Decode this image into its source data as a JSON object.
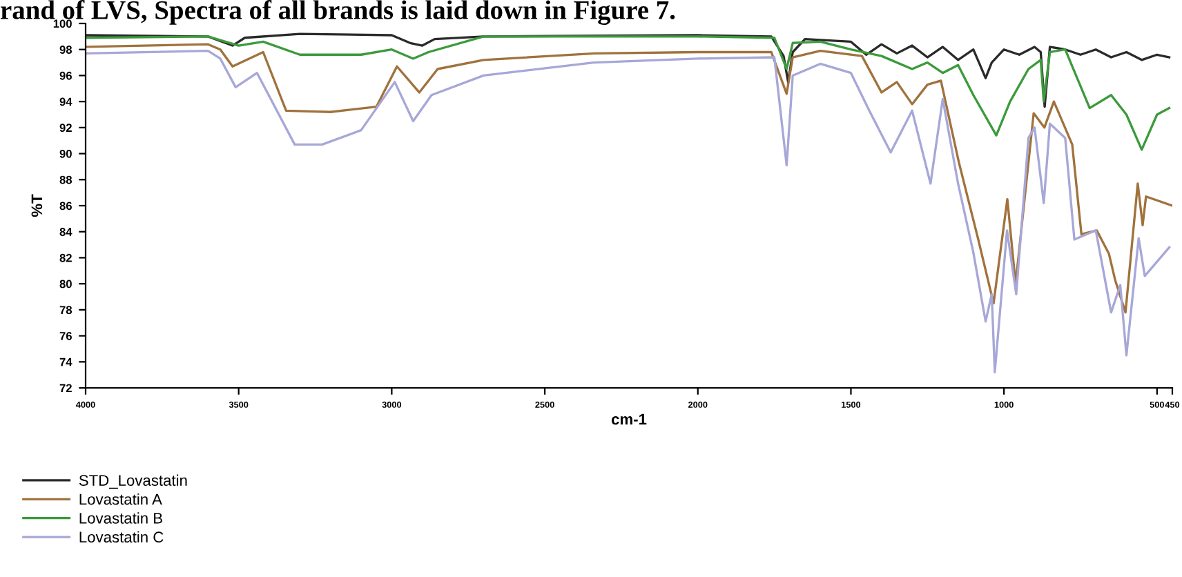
{
  "chart_data": {
    "type": "line",
    "annotations": [
      "rand of LVS, Spectra of all brands is laid down in Figure 7."
    ],
    "xlabel": "cm-1",
    "ylabel": "%T",
    "xlim": [
      4000,
      450
    ],
    "xticks": [
      4000,
      3500,
      3000,
      2500,
      2000,
      1500,
      1000,
      500,
      450
    ],
    "ylim": [
      72,
      100
    ],
    "yticks": [
      72,
      74,
      76,
      78,
      80,
      82,
      84,
      86,
      88,
      90,
      92,
      94,
      96,
      98,
      100
    ],
    "grid": false,
    "legend": "bottom left",
    "line_style": "solid",
    "marker": "none",
    "series": [
      {
        "name": "STD_Lovastatin",
        "color": "#2a2a2a",
        "x": [
          4000,
          3600,
          3520,
          3480,
          3300,
          3000,
          2940,
          2900,
          2860,
          2700,
          2000,
          1760,
          1720,
          1705,
          1690,
          1650,
          1500,
          1450,
          1400,
          1350,
          1300,
          1250,
          1200,
          1150,
          1100,
          1060,
          1040,
          1000,
          950,
          900,
          880,
          867,
          850,
          800,
          750,
          700,
          650,
          600,
          550,
          500,
          460
        ],
        "values": [
          99.1,
          99.0,
          98.3,
          98.9,
          99.2,
          99.1,
          98.5,
          98.3,
          98.8,
          99.0,
          99.1,
          99.0,
          97.5,
          95.5,
          97.8,
          98.8,
          98.6,
          97.6,
          98.4,
          97.7,
          98.3,
          97.4,
          98.2,
          97.2,
          98.0,
          95.8,
          97.0,
          98.0,
          97.6,
          98.2,
          97.8,
          93.6,
          98.2,
          98.0,
          97.6,
          98.0,
          97.4,
          97.8,
          97.2,
          97.6,
          97.4
        ]
      },
      {
        "name": "Lovastatin A",
        "color": "#a0723c",
        "x": [
          4000,
          3600,
          3560,
          3520,
          3420,
          3345,
          3200,
          3050,
          2983,
          2910,
          2850,
          2700,
          2337,
          2000,
          1760,
          1710,
          1690,
          1600,
          1464,
          1400,
          1350,
          1300,
          1250,
          1206,
          1147,
          1085,
          1034,
          989,
          962,
          903,
          868,
          837,
          777,
          747,
          697,
          657,
          637,
          603,
          563,
          547,
          536,
          450
        ],
        "values": [
          98.2,
          98.4,
          98.0,
          96.7,
          97.8,
          93.3,
          93.2,
          93.6,
          96.7,
          94.7,
          96.5,
          97.2,
          97.7,
          97.8,
          97.8,
          94.6,
          97.4,
          97.9,
          97.5,
          94.7,
          95.5,
          93.8,
          95.3,
          95.6,
          89.3,
          83.5,
          78.5,
          86.5,
          80.0,
          93.1,
          92.0,
          94.0,
          90.7,
          83.8,
          84.1,
          82.3,
          80.3,
          77.8,
          87.7,
          84.5,
          86.7,
          86.0
        ]
      },
      {
        "name": "Lovastatin B",
        "color": "#3c9a3c",
        "x": [
          4000,
          3600,
          3500,
          3420,
          3300,
          3100,
          3000,
          2930,
          2880,
          2700,
          2000,
          1750,
          1710,
          1690,
          1600,
          1500,
          1400,
          1300,
          1250,
          1200,
          1150,
          1100,
          1025,
          980,
          920,
          880,
          870,
          850,
          800,
          720,
          650,
          600,
          550,
          500,
          460
        ],
        "values": [
          98.9,
          99.0,
          98.3,
          98.6,
          97.6,
          97.6,
          98.0,
          97.3,
          97.8,
          99.0,
          99.0,
          98.9,
          96.5,
          98.5,
          98.6,
          98.0,
          97.5,
          96.5,
          97.0,
          96.2,
          96.8,
          94.5,
          91.4,
          94.0,
          96.5,
          97.2,
          94.0,
          97.8,
          98.0,
          93.5,
          94.5,
          93.0,
          90.3,
          93.0,
          93.5
        ]
      },
      {
        "name": "Lovastatin C",
        "color": "#a7a7d8",
        "x": [
          4000,
          3600,
          3560,
          3510,
          3440,
          3317,
          3227,
          3100,
          2990,
          2930,
          2870,
          2700,
          2340,
          2000,
          1750,
          1710,
          1690,
          1600,
          1500,
          1440,
          1370,
          1300,
          1240,
          1200,
          1150,
          1100,
          1060,
          1040,
          1030,
          990,
          960,
          920,
          900,
          870,
          850,
          800,
          770,
          700,
          650,
          620,
          600,
          560,
          540,
          460
        ],
        "values": [
          97.7,
          97.9,
          97.3,
          95.1,
          96.2,
          90.7,
          90.7,
          91.8,
          95.5,
          92.5,
          94.5,
          96.0,
          97.0,
          97.3,
          97.4,
          89.1,
          96.0,
          96.9,
          96.2,
          93.3,
          90.1,
          93.3,
          87.7,
          94.2,
          87.7,
          82.4,
          77.1,
          79.2,
          73.2,
          84.1,
          79.2,
          91.2,
          92.0,
          86.2,
          92.3,
          91.2,
          83.4,
          84.1,
          77.8,
          79.9,
          74.5,
          83.5,
          80.6,
          82.8
        ]
      }
    ]
  }
}
